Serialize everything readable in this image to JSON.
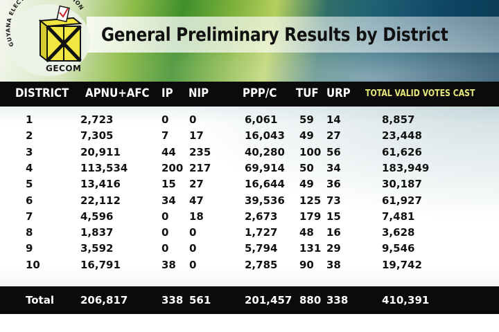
{
  "header": {
    "title": "General Preliminary Results by District"
  },
  "logo": {
    "ring_text": "GUYANA ELECTIONS COMMISSION",
    "acronym": "GECOM",
    "colors": {
      "ballot_box": "#f2e640",
      "outline": "#111111",
      "check": "#cc2222"
    }
  },
  "table": {
    "columns": [
      "DISTRICT",
      "APNU+AFC",
      "IP",
      "NIP",
      "PPP/C",
      "TUF",
      "URP",
      "TOTAL VALID VOTES CAST"
    ],
    "rows": [
      [
        "1",
        "2,723",
        "0",
        "0",
        "6,061",
        "59",
        "14",
        "8,857"
      ],
      [
        "2",
        "7,305",
        "7",
        "17",
        "16,043",
        "49",
        "27",
        "23,448"
      ],
      [
        "3",
        "20,911",
        "44",
        "235",
        "40,280",
        "100",
        "56",
        "61,626"
      ],
      [
        "4",
        "113,534",
        "200",
        "217",
        "69,914",
        "50",
        "34",
        "183,949"
      ],
      [
        "5",
        "13,416",
        "15",
        "27",
        "16,644",
        "49",
        "36",
        "30,187"
      ],
      [
        "6",
        "22,112",
        "34",
        "47",
        "39,536",
        "125",
        "73",
        "61,927"
      ],
      [
        "7",
        "4,596",
        "0",
        "18",
        "2,673",
        "179",
        "15",
        "7,481"
      ],
      [
        "8",
        "1,837",
        "0",
        "0",
        "1,727",
        "48",
        "16",
        "3,628"
      ],
      [
        "9",
        "3,592",
        "0",
        "0",
        "5,794",
        "131",
        "29",
        "9,546"
      ],
      [
        "10",
        "16,791",
        "38",
        "0",
        "2,785",
        "90",
        "38",
        "19,742"
      ]
    ],
    "total": [
      "Total",
      "206,817",
      "338",
      "561",
      "201,457",
      "880",
      "338",
      "410,391"
    ],
    "colors": {
      "header_bg": "#0b0b0b",
      "header_text": "#ffffff",
      "total_votes_header": "#e6e67a"
    }
  }
}
